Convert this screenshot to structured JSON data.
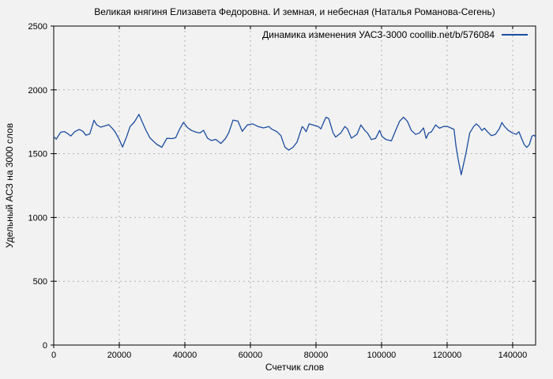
{
  "colors": {
    "background": "#f2f2f2",
    "foreground": "#000000",
    "grid": "#b0b0b0",
    "line": "#1b4c9f"
  },
  "chart_data": {
    "type": "line",
    "title": "Великая княгиня Елизавета Федоровна. И земная, и небесная (Наталья Романова-Сегень)",
    "xlabel": "Счетчик слов",
    "ylabel": "Удельный АСЗ на 3000 слов",
    "xlim": [
      0,
      147000
    ],
    "ylim": [
      0,
      2500
    ],
    "xticks": [
      0,
      20000,
      40000,
      60000,
      80000,
      100000,
      120000,
      140000
    ],
    "yticks": [
      0,
      500,
      1000,
      1500,
      2000,
      2500
    ],
    "grid": true,
    "grid_style": "dashed",
    "legend_position": "inside-top-right",
    "series": [
      {
        "name": "Динамика изменения УАСЗ-3000 coollib.net/b/576084",
        "color": "#1b4c9f",
        "points": [
          [
            0,
            1632
          ],
          [
            800,
            1614
          ],
          [
            2100,
            1668
          ],
          [
            3200,
            1673
          ],
          [
            4100,
            1660
          ],
          [
            5200,
            1638
          ],
          [
            6400,
            1672
          ],
          [
            7800,
            1690
          ],
          [
            8900,
            1675
          ],
          [
            9800,
            1645
          ],
          [
            11000,
            1655
          ],
          [
            12300,
            1762
          ],
          [
            13100,
            1726
          ],
          [
            14300,
            1708
          ],
          [
            15400,
            1716
          ],
          [
            16800,
            1727
          ],
          [
            17800,
            1700
          ],
          [
            18700,
            1672
          ],
          [
            20000,
            1611
          ],
          [
            21000,
            1552
          ],
          [
            22200,
            1630
          ],
          [
            23300,
            1712
          ],
          [
            24600,
            1748
          ],
          [
            26000,
            1808
          ],
          [
            27100,
            1742
          ],
          [
            28200,
            1680
          ],
          [
            29400,
            1622
          ],
          [
            30500,
            1595
          ],
          [
            31500,
            1572
          ],
          [
            33000,
            1550
          ],
          [
            34500,
            1620
          ],
          [
            36200,
            1618
          ],
          [
            37200,
            1625
          ],
          [
            38400,
            1692
          ],
          [
            39600,
            1745
          ],
          [
            40800,
            1705
          ],
          [
            42000,
            1682
          ],
          [
            43500,
            1668
          ],
          [
            44600,
            1662
          ],
          [
            45700,
            1683
          ],
          [
            46900,
            1622
          ],
          [
            48100,
            1603
          ],
          [
            49400,
            1612
          ],
          [
            51000,
            1580
          ],
          [
            52400,
            1618
          ],
          [
            53400,
            1665
          ],
          [
            54700,
            1763
          ],
          [
            56200,
            1755
          ],
          [
            57500,
            1675
          ],
          [
            59100,
            1725
          ],
          [
            60700,
            1733
          ],
          [
            62300,
            1713
          ],
          [
            64000,
            1702
          ],
          [
            65600,
            1713
          ],
          [
            66500,
            1692
          ],
          [
            68100,
            1672
          ],
          [
            69300,
            1641
          ],
          [
            70500,
            1552
          ],
          [
            71700,
            1528
          ],
          [
            73000,
            1550
          ],
          [
            74200,
            1590
          ],
          [
            75800,
            1712
          ],
          [
            76300,
            1700
          ],
          [
            77000,
            1672
          ],
          [
            77900,
            1733
          ],
          [
            79100,
            1725
          ],
          [
            80700,
            1713
          ],
          [
            81500,
            1694
          ],
          [
            82300,
            1744
          ],
          [
            83100,
            1786
          ],
          [
            83900,
            1774
          ],
          [
            85200,
            1663
          ],
          [
            86000,
            1630
          ],
          [
            87600,
            1663
          ],
          [
            88800,
            1713
          ],
          [
            89600,
            1694
          ],
          [
            90800,
            1621
          ],
          [
            92500,
            1651
          ],
          [
            93700,
            1725
          ],
          [
            94900,
            1682
          ],
          [
            95700,
            1663
          ],
          [
            96900,
            1610
          ],
          [
            98200,
            1620
          ],
          [
            99400,
            1682
          ],
          [
            100200,
            1633
          ],
          [
            101400,
            1610
          ],
          [
            103000,
            1600
          ],
          [
            104300,
            1682
          ],
          [
            105500,
            1754
          ],
          [
            106700,
            1786
          ],
          [
            107900,
            1754
          ],
          [
            109100,
            1682
          ],
          [
            110400,
            1651
          ],
          [
            111600,
            1663
          ],
          [
            112800,
            1702
          ],
          [
            113600,
            1620
          ],
          [
            114400,
            1663
          ],
          [
            115200,
            1670
          ],
          [
            116500,
            1725
          ],
          [
            117700,
            1699
          ],
          [
            118900,
            1713
          ],
          [
            120100,
            1713
          ],
          [
            121300,
            1699
          ],
          [
            122100,
            1690
          ],
          [
            122700,
            1560
          ],
          [
            123400,
            1450
          ],
          [
            124300,
            1335
          ],
          [
            125700,
            1497
          ],
          [
            126900,
            1663
          ],
          [
            128100,
            1713
          ],
          [
            128900,
            1733
          ],
          [
            129800,
            1713
          ],
          [
            130600,
            1682
          ],
          [
            131400,
            1699
          ],
          [
            132300,
            1672
          ],
          [
            133500,
            1641
          ],
          [
            134700,
            1651
          ],
          [
            135900,
            1694
          ],
          [
            136700,
            1744
          ],
          [
            137500,
            1713
          ],
          [
            138700,
            1682
          ],
          [
            139900,
            1663
          ],
          [
            141100,
            1651
          ],
          [
            141900,
            1672
          ],
          [
            142700,
            1620
          ],
          [
            143500,
            1572
          ],
          [
            144300,
            1549
          ],
          [
            145100,
            1572
          ],
          [
            145900,
            1638
          ],
          [
            146500,
            1645
          ],
          [
            147000,
            1632
          ]
        ]
      }
    ]
  }
}
